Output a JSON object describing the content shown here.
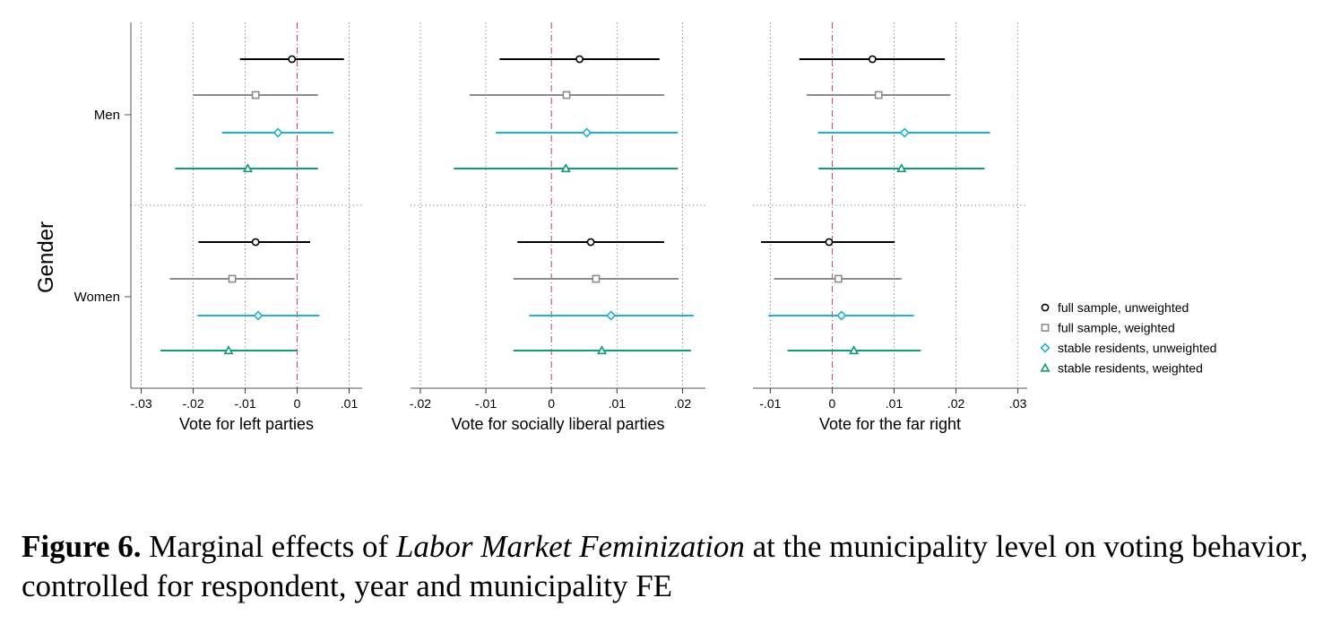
{
  "chart_data": {
    "type": "coefficient-plot",
    "y_axis_title": "Gender",
    "groups": [
      "Men",
      "Women"
    ],
    "legend": {
      "placement": "right",
      "entries": [
        {
          "label": "full sample, unweighted",
          "marker": "circle",
          "color": "#000000"
        },
        {
          "label": "full sample, weighted",
          "marker": "square",
          "color": "#8c8c8c"
        },
        {
          "label": "stable residents, unweighted",
          "marker": "diamond",
          "color": "#1ab2d8"
        },
        {
          "label": "stable residents, weighted",
          "marker": "triangle",
          "color": "#119b77"
        }
      ]
    },
    "panels": [
      {
        "xlabel": "Vote for left parties",
        "xlim": [
          -0.032,
          0.0125
        ],
        "ticks": [
          -0.03,
          -0.02,
          -0.01,
          0,
          0.01
        ],
        "tick_labels": [
          "-.03",
          "-.02",
          "-.01",
          "0",
          ".01"
        ],
        "estimates": {
          "Men": [
            {
              "est": -0.001,
              "lo": -0.011,
              "hi": 0.009
            },
            {
              "est": -0.008,
              "lo": -0.02,
              "hi": 0.004
            },
            {
              "est": -0.0037,
              "lo": -0.0145,
              "hi": 0.007
            },
            {
              "est": -0.0095,
              "lo": -0.0235,
              "hi": 0.004
            }
          ],
          "Women": [
            {
              "est": -0.008,
              "lo": -0.019,
              "hi": 0.0025
            },
            {
              "est": -0.0125,
              "lo": -0.0245,
              "hi": -0.0005
            },
            {
              "est": -0.0075,
              "lo": -0.0192,
              "hi": 0.0043
            },
            {
              "est": -0.0132,
              "lo": -0.0263,
              "hi": 0.0
            }
          ]
        }
      },
      {
        "xlabel": "Vote for socially liberal parties",
        "xlim": [
          -0.0215,
          0.0235
        ],
        "ticks": [
          -0.02,
          -0.01,
          0,
          0.01,
          0.02
        ],
        "tick_labels": [
          "-.02",
          "-.01",
          "0",
          ".01",
          ".02"
        ],
        "estimates": {
          "Men": [
            {
              "est": 0.0043,
              "lo": -0.0079,
              "hi": 0.0165
            },
            {
              "est": 0.0023,
              "lo": -0.0125,
              "hi": 0.0172
            },
            {
              "est": 0.0054,
              "lo": -0.0085,
              "hi": 0.0193
            },
            {
              "est": 0.0022,
              "lo": -0.0149,
              "hi": 0.0193
            }
          ],
          "Women": [
            {
              "est": 0.006,
              "lo": -0.0052,
              "hi": 0.0172
            },
            {
              "est": 0.0068,
              "lo": -0.0058,
              "hi": 0.0194
            },
            {
              "est": 0.0091,
              "lo": -0.0034,
              "hi": 0.0217
            },
            {
              "est": 0.0077,
              "lo": -0.0058,
              "hi": 0.0213
            }
          ]
        }
      },
      {
        "xlabel": "Vote for the far right",
        "xlim": [
          -0.0128,
          0.0315
        ],
        "ticks": [
          -0.01,
          0,
          0.01,
          0.02,
          0.03
        ],
        "tick_labels": [
          "-.01",
          "0",
          ".01",
          ".02",
          ".03"
        ],
        "estimates": {
          "Men": [
            {
              "est": 0.0065,
              "lo": -0.0053,
              "hi": 0.0182
            },
            {
              "est": 0.0075,
              "lo": -0.0041,
              "hi": 0.0191
            },
            {
              "est": 0.0117,
              "lo": -0.0023,
              "hi": 0.0255
            },
            {
              "est": 0.0112,
              "lo": -0.0022,
              "hi": 0.0246
            }
          ],
          "Women": [
            {
              "est": -0.0005,
              "lo": -0.0115,
              "hi": 0.0101
            },
            {
              "est": 0.001,
              "lo": -0.0094,
              "hi": 0.0112
            },
            {
              "est": 0.0015,
              "lo": -0.0103,
              "hi": 0.0132
            },
            {
              "est": 0.0035,
              "lo": -0.0072,
              "hi": 0.0143
            }
          ]
        }
      }
    ]
  },
  "caption": {
    "label": "Figure 6.",
    "text_before": "Marginal effects of",
    "italic": "Labor Market Feminization",
    "text_after": "at the municipality level on voting behavior, controlled for respondent, year and municipality FE"
  }
}
